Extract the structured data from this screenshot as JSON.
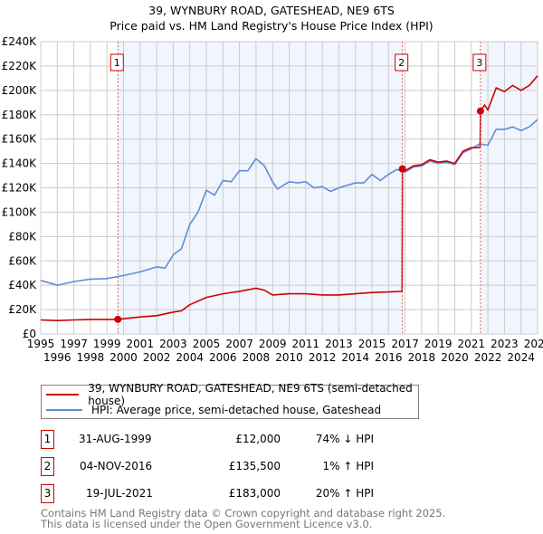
{
  "title": "39, WYNBURY ROAD, GATESHEAD, NE9 6TS",
  "subtitle": "Price paid vs. HM Land Registry's House Price Index (HPI)",
  "chart_data": {
    "type": "line",
    "title": "39, WYNBURY ROAD, GATESHEAD, NE9 6TS — Price paid vs. HM Land Registry's House Price Index (HPI)",
    "xlim": [
      1995,
      2025
    ],
    "ylim": [
      0,
      240000
    ],
    "xticks": [
      "1995",
      "1996",
      "1997",
      "1998",
      "1999",
      "2000",
      "2001",
      "2002",
      "2003",
      "2004",
      "2005",
      "2006",
      "2007",
      "2008",
      "2009",
      "2010",
      "2011",
      "2012",
      "2013",
      "2014",
      "2015",
      "2016",
      "2017",
      "2018",
      "2019",
      "2020",
      "2021",
      "2022",
      "2023",
      "2024",
      "2025"
    ],
    "yticks": [
      {
        "v": 0,
        "l": "£0"
      },
      {
        "v": 20000,
        "l": "£20K"
      },
      {
        "v": 40000,
        "l": "£40K"
      },
      {
        "v": 60000,
        "l": "£60K"
      },
      {
        "v": 80000,
        "l": "£80K"
      },
      {
        "v": 100000,
        "l": "£100K"
      },
      {
        "v": 120000,
        "l": "£120K"
      },
      {
        "v": 140000,
        "l": "£140K"
      },
      {
        "v": 160000,
        "l": "£160K"
      },
      {
        "v": 180000,
        "l": "£180K"
      },
      {
        "v": 200000,
        "l": "£200K"
      },
      {
        "v": 220000,
        "l": "£220K"
      },
      {
        "v": 240000,
        "l": "£240K"
      }
    ],
    "grid": true,
    "series": [
      {
        "name": "39, WYNBURY ROAD, GATESHEAD, NE9 6TS (semi-detached house)",
        "color": "#cc0000",
        "x": [
          1995,
          1996,
          1997,
          1998,
          1999.66,
          2000,
          2001,
          2002,
          2003,
          2003.5,
          2004,
          2005,
          2006,
          2007,
          2008,
          2008.5,
          2009,
          2010,
          2011,
          2012,
          2013,
          2014,
          2015,
          2016,
          2016.82,
          2016.84,
          2017,
          2017.5,
          2018,
          2018.5,
          2019,
          2019.5,
          2020,
          2020.5,
          2021,
          2021.53,
          2021.55,
          2021.8,
          2022,
          2022.5,
          2023,
          2023.5,
          2024,
          2024.5,
          2025
        ],
        "y": [
          11500,
          11000,
          11500,
          12000,
          12000,
          12500,
          14000,
          15000,
          18000,
          19000,
          24000,
          30000,
          33000,
          35000,
          37500,
          36000,
          32000,
          33000,
          33000,
          32000,
          32000,
          33000,
          34000,
          34500,
          35000,
          135500,
          134000,
          138000,
          139000,
          143000,
          141000,
          142000,
          140000,
          150000,
          153000,
          153000,
          183000,
          188000,
          184000,
          202000,
          199000,
          204000,
          200000,
          204000,
          212000
        ]
      },
      {
        "name": "HPI: Average price, semi-detached house, Gateshead",
        "color": "#5b8fd6",
        "x": [
          1995,
          1996,
          1997,
          1998,
          1999,
          2000,
          2001,
          2002,
          2002.5,
          2003,
          2003.5,
          2004,
          2004.5,
          2005,
          2005.5,
          2006,
          2006.5,
          2007,
          2007.5,
          2008,
          2008.5,
          2009,
          2009.3,
          2010,
          2010.5,
          2011,
          2011.5,
          2012,
          2012.5,
          2013,
          2013.5,
          2014,
          2014.5,
          2015,
          2015.5,
          2016,
          2016.5,
          2017,
          2017.5,
          2018,
          2018.5,
          2019,
          2019.5,
          2020,
          2020.5,
          2021,
          2021.5,
          2022,
          2022.5,
          2023,
          2023.5,
          2024,
          2024.5,
          2025
        ],
        "y": [
          44000,
          40000,
          43000,
          45000,
          45500,
          48000,
          51000,
          55000,
          54000,
          65000,
          70000,
          90000,
          100000,
          118000,
          114000,
          126000,
          125000,
          134000,
          134000,
          144000,
          138000,
          125000,
          119000,
          125000,
          124000,
          125000,
          120000,
          121000,
          117000,
          120000,
          122000,
          124000,
          124000,
          131000,
          126000,
          131000,
          135000,
          133000,
          137000,
          138000,
          142000,
          140000,
          141000,
          139000,
          149000,
          152000,
          156000,
          155000,
          168000,
          168000,
          170000,
          167000,
          170000,
          176000
        ]
      }
    ],
    "sales": [
      {
        "label": "1",
        "x": 1999.66,
        "y": 12000
      },
      {
        "label": "2",
        "x": 2016.84,
        "y": 135500
      },
      {
        "label": "3",
        "x": 2021.55,
        "y": 183000
      }
    ],
    "legend": "below"
  },
  "legend": [
    {
      "label": "39, WYNBURY ROAD, GATESHEAD, NE9 6TS (semi-detached house)",
      "color": "#cc0000"
    },
    {
      "label": "HPI: Average price, semi-detached house, Gateshead",
      "color": "#5b8fd6"
    }
  ],
  "transactions": [
    {
      "num": "1",
      "date": "31-AUG-1999",
      "price": "£12,000",
      "hpi": "74% ↓ HPI"
    },
    {
      "num": "2",
      "date": "04-NOV-2016",
      "price": "£135,500",
      "hpi": "1% ↑ HPI"
    },
    {
      "num": "3",
      "date": "19-JUL-2021",
      "price": "£183,000",
      "hpi": "20% ↑ HPI"
    }
  ],
  "footer": [
    "Contains HM Land Registry data © Crown copyright and database right 2025.",
    "This data is licensed under the Open Government Licence v3.0."
  ]
}
